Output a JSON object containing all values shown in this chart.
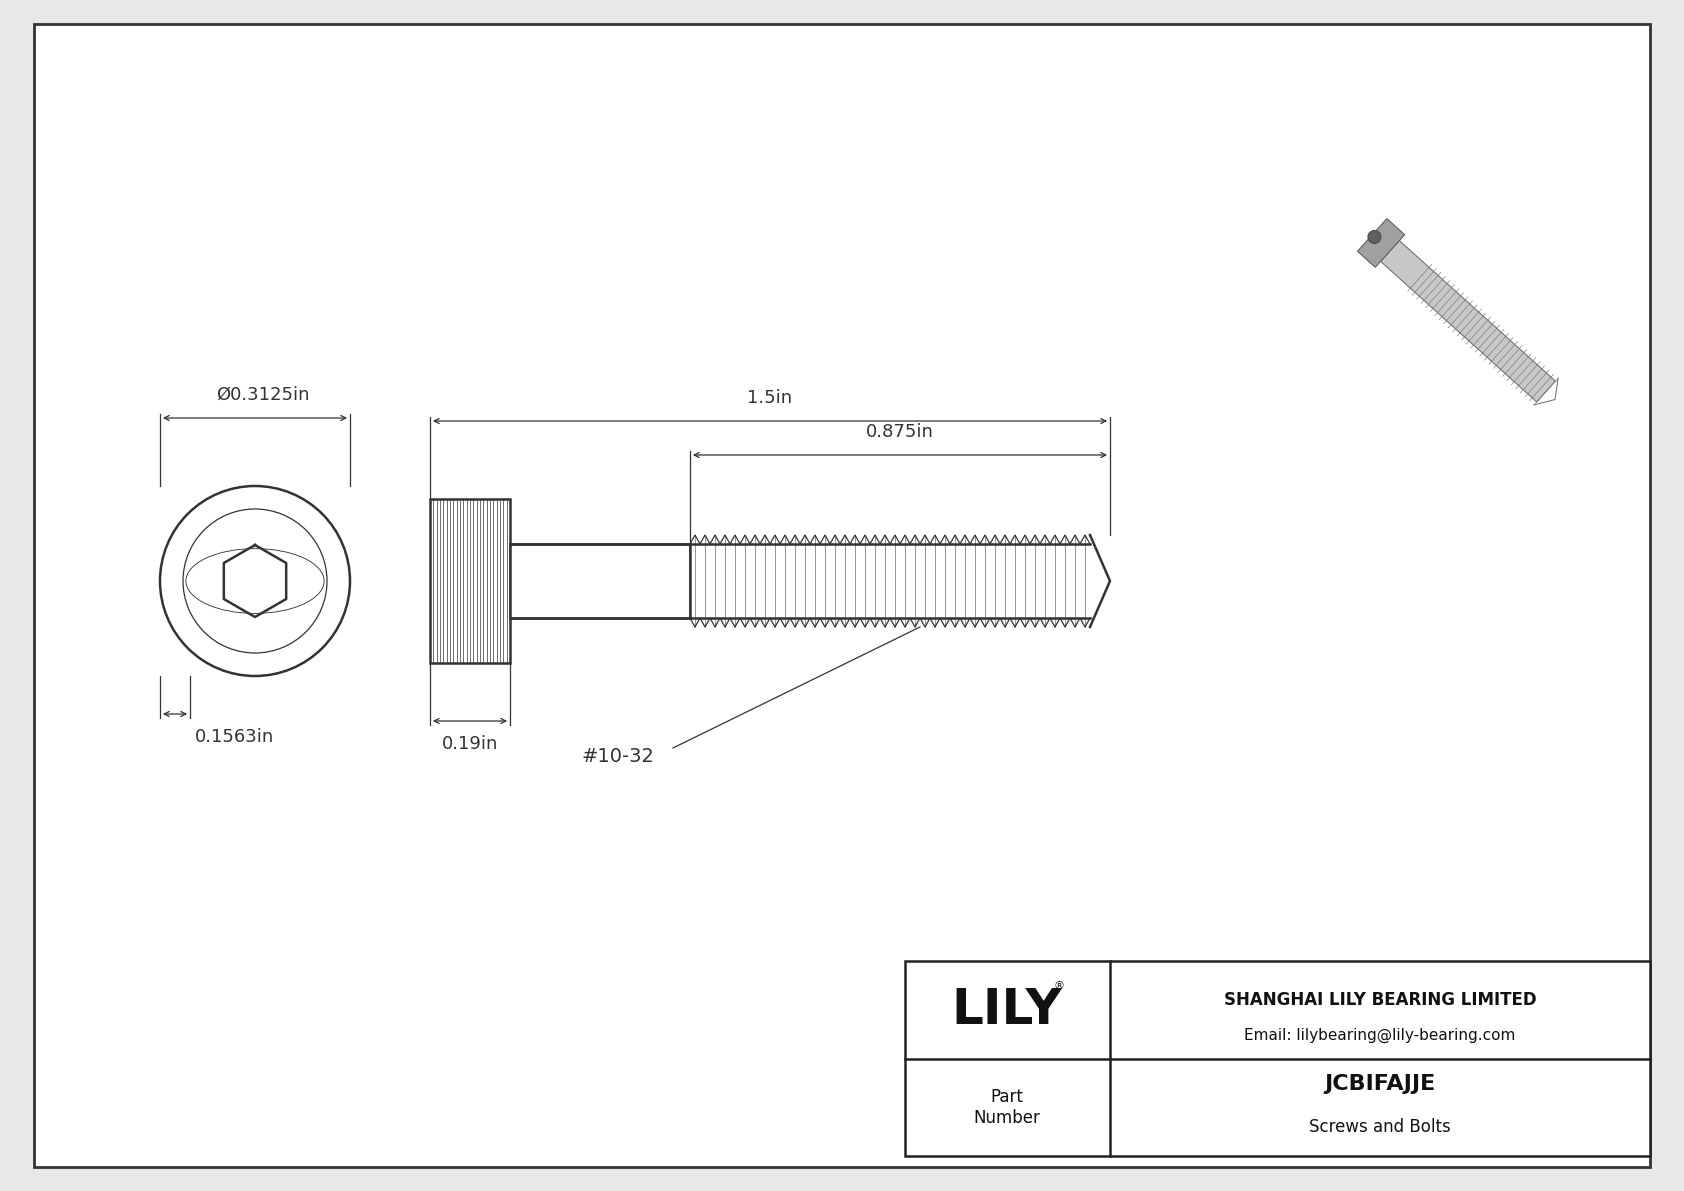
{
  "bg_color": "#e8e8e8",
  "drawing_bg": "#ffffff",
  "border_color": "#333333",
  "line_color": "#333333",
  "title": "JCBIFAJJE",
  "subtitle": "Screws and Bolts",
  "company": "SHANGHAI LILY BEARING LIMITED",
  "email": "Email: lilybearing@lily-bearing.com",
  "part_label": "Part\nNumber",
  "logo_reg": "®",
  "dim_diameter": "Ø0.3125in",
  "dim_head_height": "0.1563in",
  "dim_head_width": "0.19in",
  "dim_total_length": "1.5in",
  "dim_thread_length": "0.875in",
  "thread_label": "#10-32",
  "font_size_dims": 13,
  "font_size_title": 16,
  "font_size_company": 12,
  "font_size_logo": 36
}
